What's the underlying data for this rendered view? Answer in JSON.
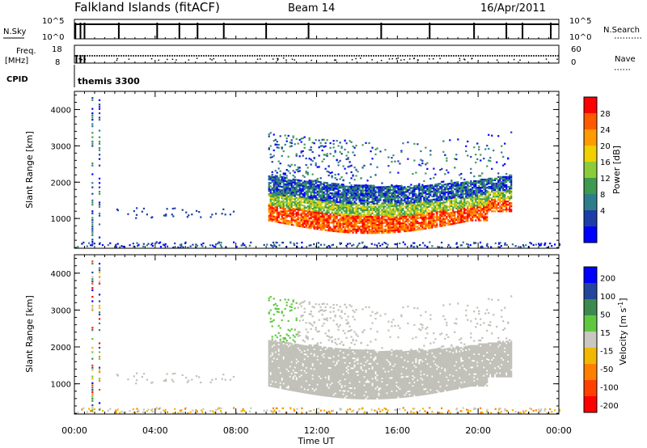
{
  "header": {
    "site": "Falkland Islands (fitACF)",
    "beam": "Beam 14",
    "date": "16/Apr/2011"
  },
  "top_panels": {
    "nsky_label": "N.Sky",
    "nsearch_label": "N.Search",
    "nsky_ticks": [
      "10^5",
      "10^0"
    ],
    "nsearch_ticks": [
      "10^5",
      "10^0"
    ],
    "freq_label_1": "Freq.",
    "freq_label_2": "[MHz]",
    "freq_ticks": [
      "18",
      "8"
    ],
    "nave_label": "Nave",
    "nave_ticks": [
      "60",
      "0"
    ],
    "cpid_label": "CPID",
    "cpid_value": "themis 3300"
  },
  "colors": {
    "power_scale": [
      "#0000ff",
      "#1c3ea6",
      "#2e7d8a",
      "#3d9a4e",
      "#8ccc3a",
      "#f0d000",
      "#ff9a00",
      "#ff5a00",
      "#ff0000"
    ],
    "velocity_scale": [
      "#0000ff",
      "#23469a",
      "#3d8a4e",
      "#60c840",
      "#c8c8c0",
      "#f0b800",
      "#ff8000",
      "#ff4000",
      "#ff0000"
    ],
    "ground_scatter": "#c0c0b8"
  },
  "chart_data": [
    {
      "type": "heatmap",
      "title": "",
      "xlabel": "",
      "ylabel": "Slant Range [km]",
      "x_ticks": [
        "00:00",
        "04:00",
        "08:00",
        "12:00",
        "16:00",
        "20:00",
        "00:00"
      ],
      "xlim_hours": [
        0,
        24
      ],
      "ylim_km": [
        180,
        4500
      ],
      "y_ticks": [
        1000,
        2000,
        3000,
        4000
      ],
      "colorbar": {
        "label": "Power [dB]",
        "ticks": [
          4,
          8,
          12,
          16,
          20,
          24,
          28
        ],
        "range": [
          0,
          30
        ]
      }
    },
    {
      "type": "heatmap",
      "title": "",
      "xlabel": "Time UT",
      "ylabel": "Slant Range [km]",
      "x_ticks": [
        "00:00",
        "04:00",
        "08:00",
        "12:00",
        "16:00",
        "20:00",
        "00:00"
      ],
      "xlim_hours": [
        0,
        24
      ],
      "ylim_km": [
        180,
        4500
      ],
      "y_ticks": [
        1000,
        2000,
        3000,
        4000
      ],
      "colorbar": {
        "label": "Velocity [m s-1]",
        "ticks": [
          200,
          100,
          50,
          15,
          -15,
          -50,
          -100,
          -200
        ]
      }
    }
  ]
}
